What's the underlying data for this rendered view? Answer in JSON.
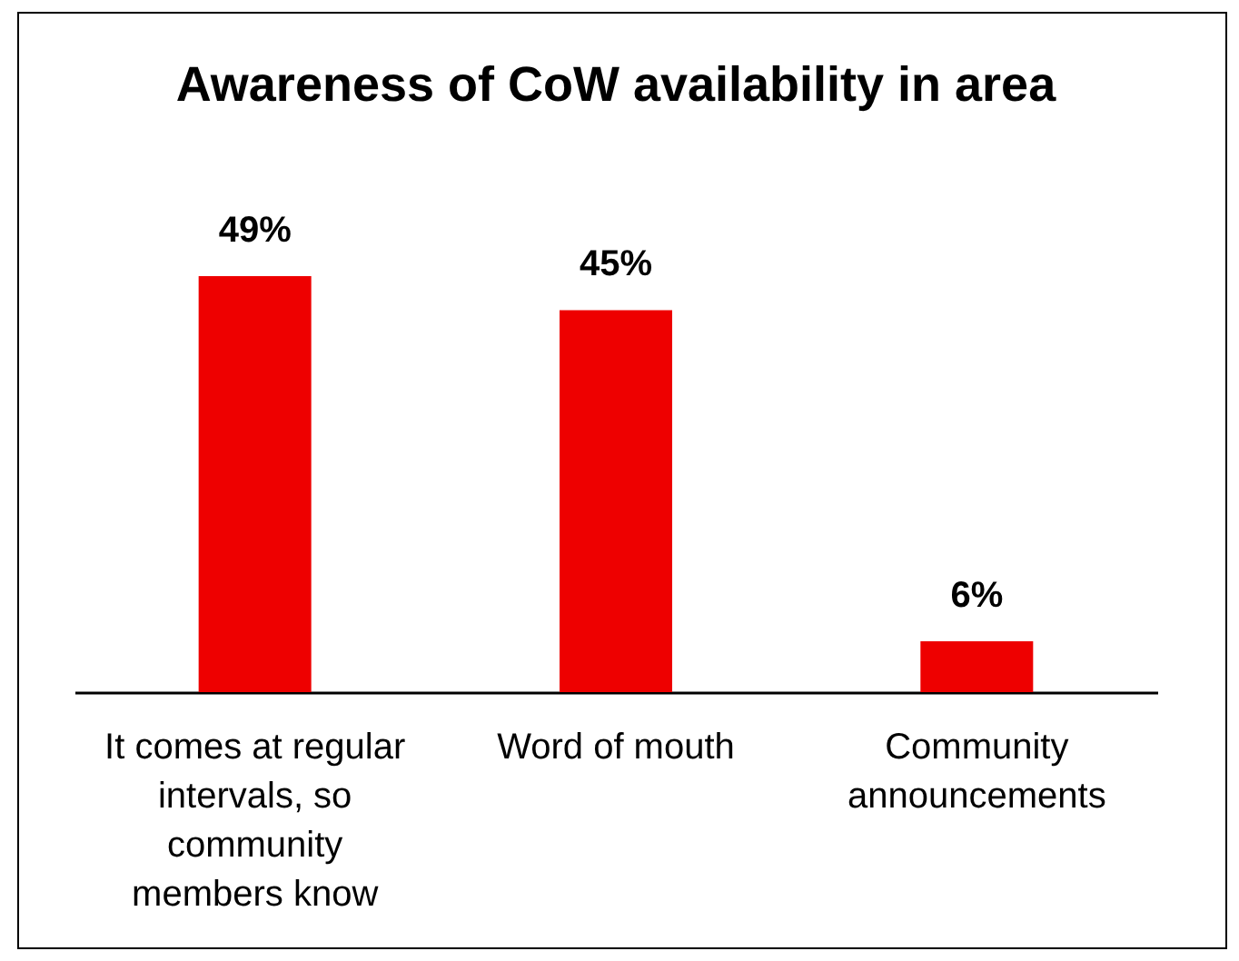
{
  "chart_data": {
    "type": "bar",
    "title": "Awareness of CoW availability in area",
    "categories": [
      "It comes at regular intervals, so community members know",
      "Word of mouth",
      "Community announcements"
    ],
    "values": [
      49,
      45,
      6
    ],
    "value_labels": [
      "49%",
      "45%",
      "6%"
    ],
    "color": "#ee0000"
  }
}
